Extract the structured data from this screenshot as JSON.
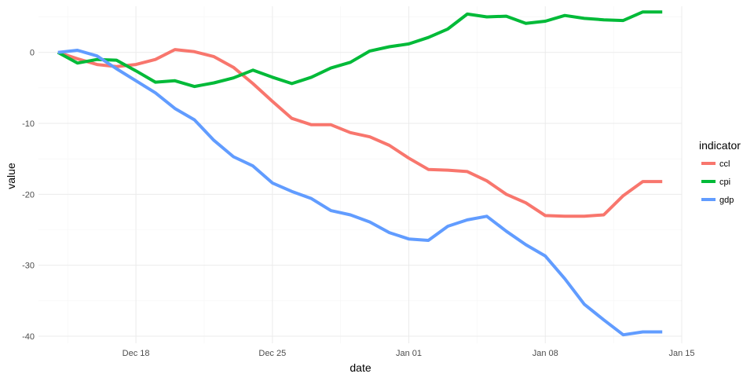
{
  "chart_data": {
    "type": "line",
    "xlabel": "date",
    "ylabel": "value",
    "x_tick_labels": [
      "Dec 18",
      "Dec 25",
      "Jan 01",
      "Jan 08",
      "Jan 15"
    ],
    "x_ticks_dates": [
      "2023-12-18",
      "2023-12-25",
      "2024-01-01",
      "2024-01-08",
      "2024-01-15"
    ],
    "y_ticks": [
      0,
      -10,
      -20,
      -30,
      -40
    ],
    "xlim": [
      "2023-12-13",
      "2024-01-15"
    ],
    "ylim": [
      -41,
      6.5
    ],
    "grid": true,
    "legend": {
      "title": "indicator",
      "position": "right"
    },
    "x": [
      "2023-12-14",
      "2023-12-15",
      "2023-12-16",
      "2023-12-17",
      "2023-12-18",
      "2023-12-19",
      "2023-12-20",
      "2023-12-21",
      "2023-12-22",
      "2023-12-23",
      "2023-12-24",
      "2023-12-25",
      "2023-12-26",
      "2023-12-27",
      "2023-12-28",
      "2023-12-29",
      "2023-12-30",
      "2023-12-31",
      "2024-01-01",
      "2024-01-02",
      "2024-01-03",
      "2024-01-04",
      "2024-01-05",
      "2024-01-06",
      "2024-01-07",
      "2024-01-08",
      "2024-01-09",
      "2024-01-10",
      "2024-01-11",
      "2024-01-12",
      "2024-01-13",
      "2024-01-14"
    ],
    "series": [
      {
        "name": "ccl",
        "color": "#F8766D",
        "values": [
          0,
          -0.9,
          -1.7,
          -2.0,
          -1.7,
          -1.0,
          0.4,
          0.1,
          -0.6,
          -2.1,
          -4.4,
          -6.9,
          -9.3,
          -10.2,
          -10.2,
          -11.3,
          -11.9,
          -13.1,
          -14.9,
          -16.5,
          -16.6,
          -16.8,
          -18.1,
          -20.0,
          -21.2,
          -23.0,
          -23.1,
          -23.1,
          -22.9,
          -20.2,
          -18.2,
          -18.2
        ]
      },
      {
        "name": "cpi",
        "color": "#00BA38",
        "values": [
          0,
          -1.5,
          -1.0,
          -1.1,
          -2.6,
          -4.2,
          -4.0,
          -4.8,
          -4.3,
          -3.6,
          -2.5,
          -3.5,
          -4.4,
          -3.5,
          -2.2,
          -1.4,
          0.2,
          0.8,
          1.2,
          2.1,
          3.3,
          5.4,
          5.0,
          5.1,
          4.1,
          4.4,
          5.2,
          4.8,
          4.6,
          4.5,
          5.7,
          5.7
        ]
      },
      {
        "name": "gdp",
        "color": "#619CFF",
        "values": [
          0,
          0.3,
          -0.5,
          -2.3,
          -4.0,
          -5.7,
          -7.9,
          -9.5,
          -12.4,
          -14.7,
          -16.0,
          -18.4,
          -19.6,
          -20.6,
          -22.3,
          -22.9,
          -23.9,
          -25.4,
          -26.3,
          -26.5,
          -24.5,
          -23.6,
          -23.1,
          -25.2,
          -27.1,
          -28.7,
          -31.9,
          -35.5,
          -37.7,
          -39.8,
          -39.4,
          -39.4
        ]
      }
    ]
  }
}
